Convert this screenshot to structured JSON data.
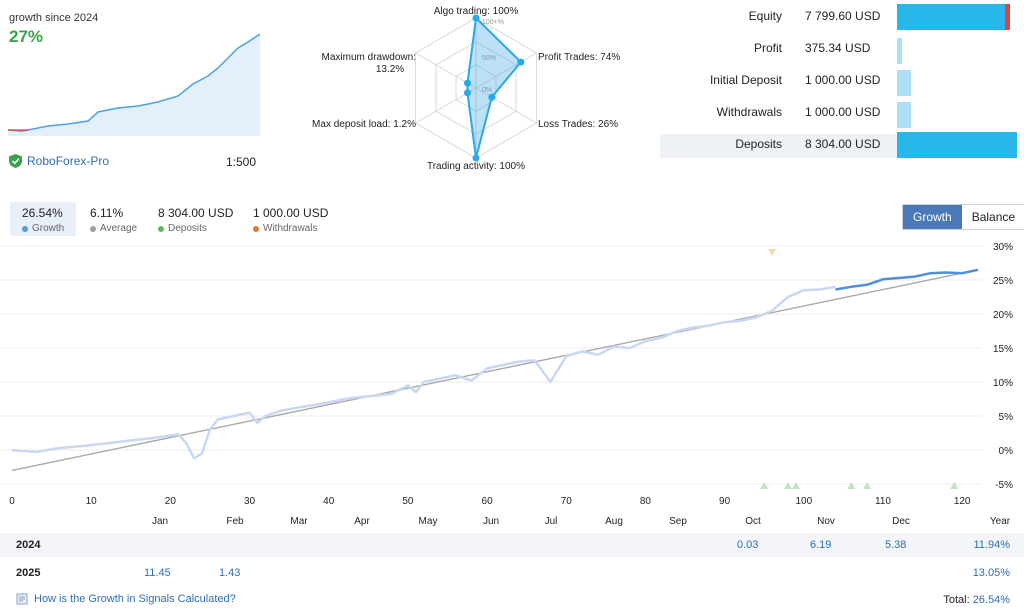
{
  "summary_header": {
    "growth_label": "growth since 2024",
    "growth_value": "27%",
    "broker_name": "RoboForex-Pro",
    "leverage": "1:500"
  },
  "radar": {
    "axes": [
      {
        "label": "Algo trading: 100%",
        "value": 100
      },
      {
        "label": "Profit Trades: 74%",
        "value": 74
      },
      {
        "label": "Loss Trades: 26%",
        "value": 26
      },
      {
        "label": "Trading activity: 100%",
        "value": 100
      },
      {
        "label": "Max deposit load: 1.2%",
        "value": 1.2
      },
      {
        "label": "Maximum drawdown:",
        "label2": "13.2%",
        "value": 13.2
      }
    ],
    "ring_labels": [
      "100+%",
      "50%",
      "0%"
    ]
  },
  "stats": [
    {
      "label": "Equity",
      "value": "7 799.60 USD",
      "bar": 0.94,
      "red": 0.04
    },
    {
      "label": "Profit",
      "value": "375.34 USD",
      "bar": 0.04,
      "red": 0
    },
    {
      "label": "Initial Deposit",
      "value": "1 000.00 USD",
      "bar": 0.12,
      "red": 0
    },
    {
      "label": "Withdrawals",
      "value": "1 000.00 USD",
      "bar": 0.12,
      "red": 0
    },
    {
      "label": "Deposits",
      "value": "8 304.00 USD",
      "bar": 1.0,
      "red": 0
    }
  ],
  "summary_tabs": [
    {
      "value": "26.54%",
      "label": "Growth",
      "color": "#5b9bd5"
    },
    {
      "value": "6.11%",
      "label": "Average",
      "color": "#9e9e9e"
    },
    {
      "value": "8 304.00 USD",
      "label": "Deposits",
      "color": "#5cb85c"
    },
    {
      "value": "1 000.00 USD",
      "label": "Withdrawals",
      "color": "#e07b39"
    }
  ],
  "toggle": {
    "growth": "Growth",
    "balance": "Balance"
  },
  "chart_data": {
    "type": "line",
    "x_ticks": [
      0,
      10,
      20,
      30,
      40,
      50,
      60,
      70,
      80,
      90,
      100,
      110,
      120
    ],
    "y_ticks": [
      "30%",
      "25%",
      "20%",
      "15%",
      "10%",
      "5%",
      "0%",
      "-5%"
    ],
    "y_values": [
      30,
      25,
      20,
      15,
      10,
      5,
      0,
      -5
    ],
    "xlim": [
      0,
      122
    ],
    "ylim": [
      -5,
      30
    ],
    "month_labels": [
      "Jan",
      "Feb",
      "Mar",
      "Apr",
      "May",
      "Jun",
      "Jul",
      "Aug",
      "Sep",
      "Oct",
      "Nov",
      "Dec",
      "Year"
    ],
    "series": [
      {
        "values_x": [
          0,
          3,
          6,
          9,
          12,
          15,
          18,
          21,
          22,
          23,
          24,
          25,
          26,
          28,
          30,
          31,
          32,
          34,
          36,
          38,
          40,
          42,
          44,
          46,
          48,
          50,
          51,
          52,
          54,
          56,
          58,
          60,
          62,
          64,
          66,
          68,
          70,
          72,
          74,
          76,
          78,
          80,
          82,
          84,
          86,
          88,
          90,
          92,
          94,
          96,
          98,
          100,
          102,
          104
        ],
        "values_y": [
          0,
          -0.3,
          0.3,
          0.6,
          1.0,
          1.4,
          1.8,
          2.3,
          1.0,
          -1.2,
          -0.5,
          3.0,
          4.5,
          5.0,
          5.5,
          4.0,
          5.0,
          5.8,
          6.2,
          6.6,
          7.0,
          7.5,
          7.8,
          8.0,
          8.3,
          9.5,
          8.5,
          10.0,
          10.5,
          11.0,
          10.2,
          12.0,
          12.5,
          13.0,
          13.2,
          10.0,
          13.8,
          14.5,
          14.0,
          15.2,
          15.0,
          16.0,
          16.5,
          17.5,
          18.0,
          18.3,
          18.8,
          19.0,
          19.5,
          20.5,
          22.5,
          23.5,
          23.6,
          24.0
        ]
      },
      {
        "values_x": [
          104,
          106,
          108,
          110,
          112,
          114,
          116,
          118,
          120,
          122
        ],
        "values_y": [
          23.6,
          24.0,
          24.3,
          25.1,
          25.3,
          25.5,
          26.0,
          26.1,
          26.0,
          26.5
        ]
      },
      {
        "values_x": [
          0,
          122
        ],
        "values_y": [
          -3,
          26.5
        ]
      }
    ],
    "markers": {
      "withdrawals": [
        96
      ],
      "deposits": [
        95,
        98,
        99,
        106,
        108,
        119
      ]
    }
  },
  "table": {
    "rows": [
      {
        "year": "2024",
        "cells": [
          {
            "month": "Oct",
            "v": "0.03"
          },
          {
            "month": "Nov",
            "v": "6.19"
          },
          {
            "month": "Dec",
            "v": "5.38"
          }
        ],
        "total": "11.94%"
      },
      {
        "year": "2025",
        "cells": [
          {
            "month": "Jan",
            "v": "11.45"
          },
          {
            "month": "Feb",
            "v": "1.43"
          }
        ],
        "total": "13.05%"
      }
    ]
  },
  "footer": {
    "link": "How is the Growth in Signals Calculated?",
    "total_label": "Total:",
    "total_value": "26.54%"
  }
}
